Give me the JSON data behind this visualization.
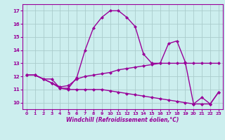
{
  "line1_x": [
    0,
    1,
    2,
    3,
    4,
    5,
    6,
    7,
    8,
    9,
    10,
    11,
    12,
    13,
    14,
    15,
    16,
    17,
    18,
    19,
    20,
    21,
    22,
    23
  ],
  "line1_y": [
    12.1,
    12.1,
    11.8,
    11.8,
    11.1,
    11.1,
    11.9,
    14.0,
    15.7,
    16.5,
    17.0,
    17.0,
    16.5,
    15.8,
    13.7,
    13.0,
    13.0,
    14.5,
    14.7,
    13.1,
    9.9,
    10.4,
    9.9,
    10.8
  ],
  "line2_x": [
    0,
    1,
    2,
    3,
    4,
    5,
    6,
    7,
    8,
    9,
    10,
    11,
    12,
    13,
    14,
    15,
    16,
    17,
    18,
    19,
    20,
    21,
    22,
    23
  ],
  "line2_y": [
    12.1,
    12.1,
    11.8,
    11.5,
    11.2,
    11.3,
    11.8,
    12.0,
    12.1,
    12.2,
    12.3,
    12.5,
    12.6,
    12.7,
    12.8,
    12.9,
    13.0,
    13.0,
    13.0,
    13.0,
    13.0,
    13.0,
    13.0,
    13.0
  ],
  "line3_x": [
    0,
    1,
    2,
    3,
    4,
    5,
    6,
    7,
    8,
    9,
    10,
    11,
    12,
    13,
    14,
    15,
    16,
    17,
    18,
    19,
    20,
    21,
    22,
    23
  ],
  "line3_y": [
    12.1,
    12.1,
    11.8,
    11.5,
    11.1,
    11.0,
    11.0,
    11.0,
    11.0,
    11.0,
    10.9,
    10.8,
    10.7,
    10.6,
    10.5,
    10.4,
    10.3,
    10.2,
    10.1,
    10.0,
    9.9,
    9.9,
    9.9,
    10.8
  ],
  "color": "#990099",
  "bg_color": "#cceeee",
  "grid_color": "#aacccc",
  "xlabel": "Windchill (Refroidissement éolien,°C)",
  "xlim": [
    -0.5,
    23.5
  ],
  "ylim": [
    9.5,
    17.5
  ],
  "xticks": [
    0,
    1,
    2,
    3,
    4,
    5,
    6,
    7,
    8,
    9,
    10,
    11,
    12,
    13,
    14,
    15,
    16,
    17,
    18,
    19,
    20,
    21,
    22,
    23
  ],
  "yticks": [
    10,
    11,
    12,
    13,
    14,
    15,
    16,
    17
  ],
  "marker": "D",
  "markersize": 2.5,
  "linewidth": 1.0
}
